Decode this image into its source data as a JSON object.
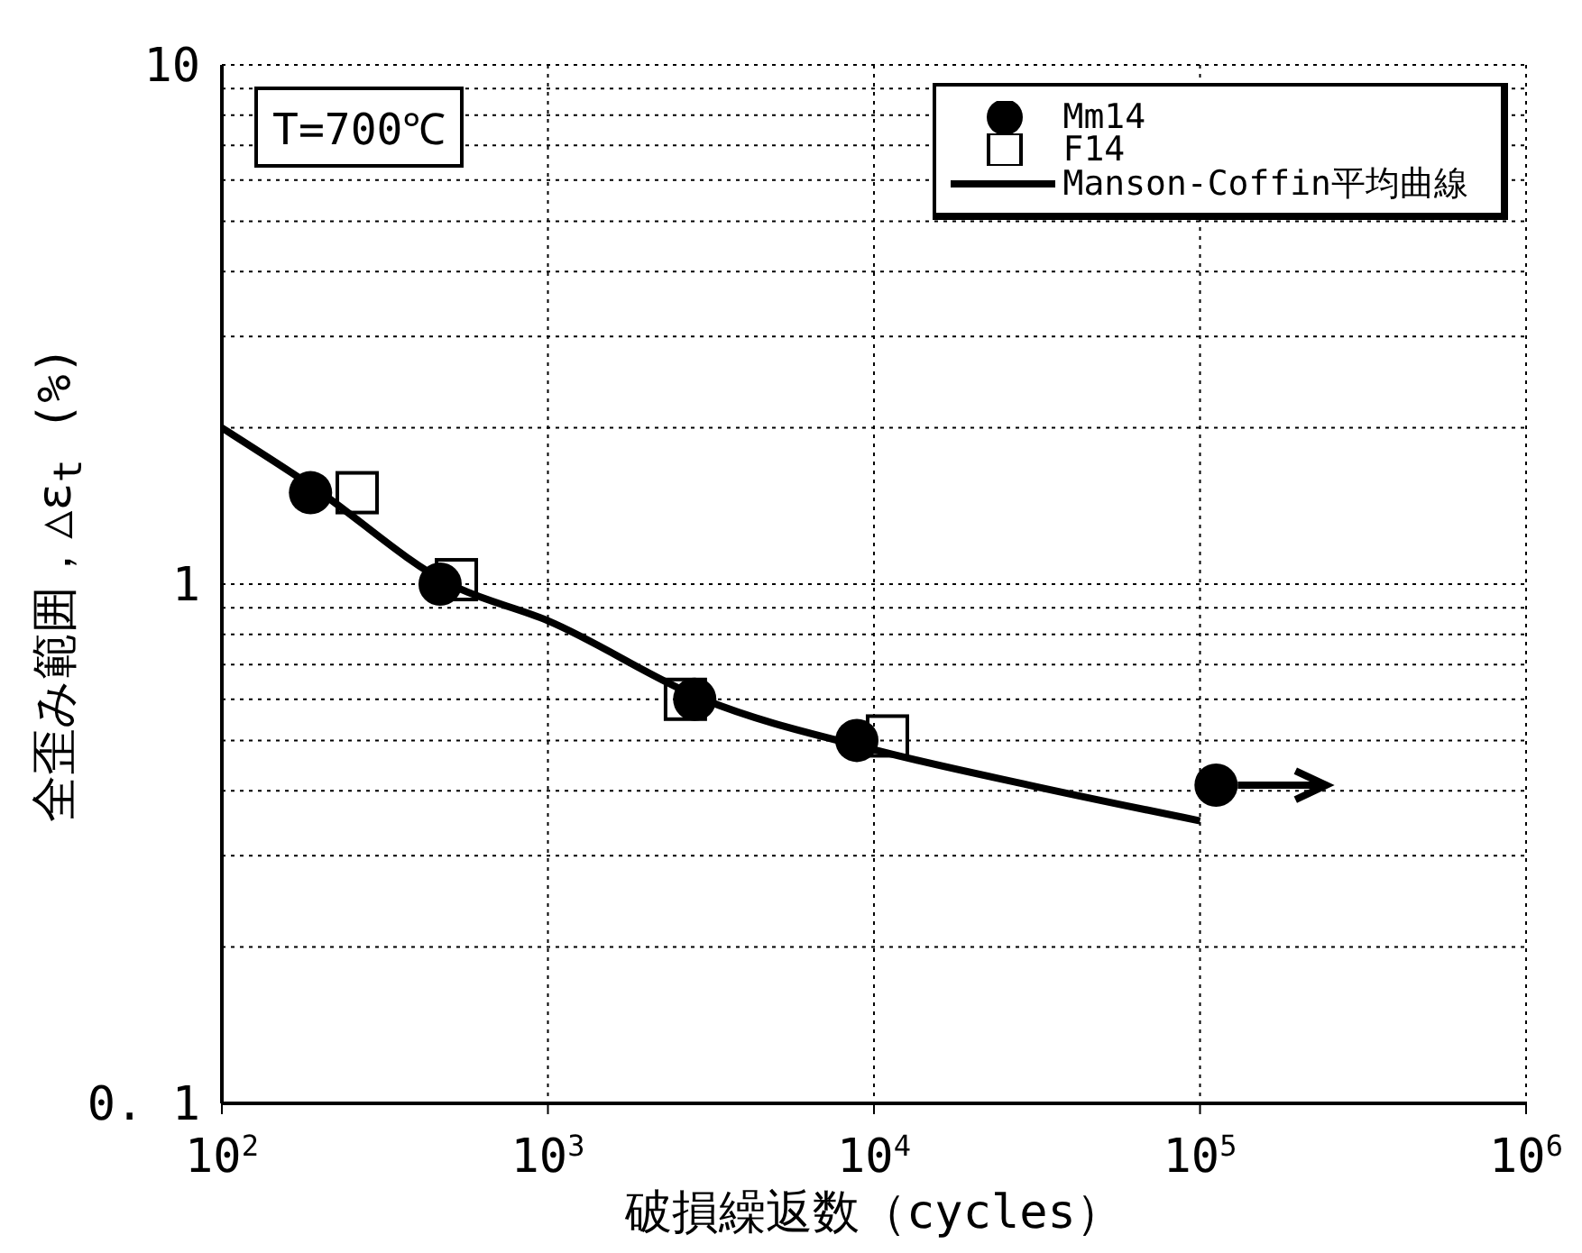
{
  "chart_data": {
    "type": "scatter",
    "xlabel": "破損繰返数（cycles）",
    "ylabel": "全歪み範囲，△ε$_{t}$ (%)",
    "log": "xy",
    "grid": true,
    "legend": "top right",
    "xlim": [
      100,
      1000000
    ],
    "ylim": [
      0.1,
      10
    ],
    "xticks": [
      {
        "value": 100,
        "label": "10$^{2}$"
      },
      {
        "value": 1000,
        "label": "10$^{3}$"
      },
      {
        "value": 10000,
        "label": "10$^{4}$"
      },
      {
        "value": 100000,
        "label": "10$^{5}$"
      },
      {
        "value": 1000000,
        "label": "10$^{6}$"
      }
    ],
    "yticks": [
      {
        "value": 0.1,
        "label": "0. 1"
      },
      {
        "value": 0.2,
        "label": null
      },
      {
        "value": 0.3,
        "label": null
      },
      {
        "value": 0.4,
        "label": null
      },
      {
        "value": 0.5,
        "label": null
      },
      {
        "value": 0.6,
        "label": null
      },
      {
        "value": 0.7,
        "label": null
      },
      {
        "value": 0.8,
        "label": null
      },
      {
        "value": 0.9,
        "label": null
      },
      1,
      {
        "value": 2,
        "label": null
      },
      {
        "value": 3,
        "label": null
      },
      {
        "value": 4,
        "label": null
      },
      {
        "value": 5,
        "label": null
      },
      {
        "value": 6,
        "label": null
      },
      {
        "value": 7,
        "label": null
      },
      {
        "value": 8,
        "label": null
      },
      {
        "value": 9,
        "label": null
      },
      10
    ],
    "annotations": [
      "T=700℃"
    ],
    "series": [
      {
        "name": "Mm14",
        "marker": "circle",
        "color": "#000000",
        "x": [
          187,
          467,
          2820,
          8860,
          112000
        ],
        "values": [
          1.5,
          1.0,
          0.6,
          0.5,
          0.41
        ]
      },
      {
        "name": "F14",
        "marker": "square",
        "color": "#000000",
        "x": [
          260,
          524,
          2640,
          11000
        ],
        "values": [
          1.5,
          1.02,
          0.6,
          0.51
        ]
      },
      {
        "name": "Manson-Coffin平均曲線",
        "type": "line",
        "marker": "none",
        "color": "#000000",
        "x": [
          100,
          187,
          500,
          1000,
          3000,
          10000,
          30000,
          100000
        ],
        "values": [
          2.0,
          1.55,
          1.0,
          0.85,
          0.6,
          0.48,
          0.41,
          0.35
        ]
      }
    ]
  }
}
